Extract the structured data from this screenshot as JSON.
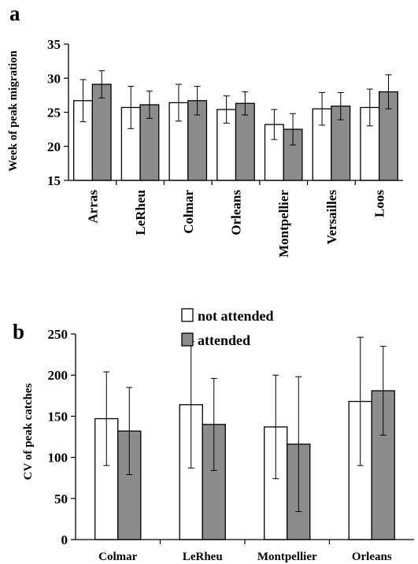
{
  "colors": {
    "not_attended": "#ffffff",
    "attended": "#8c8c8c"
  },
  "chart_data": [
    {
      "type": "bar",
      "panel_label": "a",
      "ylabel": "Week of peak migration",
      "xlabel": "",
      "ylim": [
        15,
        35
      ],
      "yticks": [
        15,
        20,
        25,
        30,
        35
      ],
      "categories": [
        "Arras",
        "LeRheu",
        "Colmar",
        "Orleans",
        "Montpellier",
        "Versailles",
        "Loos"
      ],
      "series": [
        {
          "values": [
            26.7,
            25.7,
            26.4,
            25.4,
            23.2,
            25.5,
            25.7
          ],
          "errors": [
            3.1,
            3.1,
            2.7,
            2.0,
            2.2,
            2.4,
            2.7
          ]
        },
        {
          "values": [
            29.1,
            26.1,
            26.7,
            26.3,
            22.5,
            25.9,
            28.0
          ],
          "errors": [
            2.0,
            2.0,
            2.1,
            1.7,
            2.3,
            2.0,
            2.5
          ]
        }
      ],
      "grid": false
    },
    {
      "type": "bar",
      "panel_label": "b",
      "ylabel": "CV of peak catches",
      "xlabel": "",
      "ylim": [
        0,
        250
      ],
      "yticks": [
        0,
        50,
        100,
        150,
        200,
        250
      ],
      "categories": [
        "Colmar",
        "LeRheu",
        "Montpellier",
        "Orleans"
      ],
      "series": [
        {
          "name": "not attended",
          "values": [
            147,
            164,
            137,
            168
          ],
          "errors": [
            57,
            77,
            63,
            78
          ]
        },
        {
          "name": "attended",
          "values": [
            132,
            140,
            116,
            181
          ],
          "errors": [
            53,
            56,
            82,
            54
          ]
        }
      ],
      "legend": "top-center",
      "grid": false
    }
  ]
}
